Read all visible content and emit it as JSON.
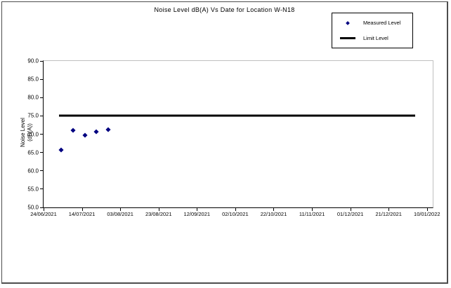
{
  "chart_data": {
    "type": "scatter",
    "title": "Noise Level dB(A) Vs Date for Location W-N18",
    "ylabel_lines": [
      "Noise Level",
      "(dB(A))"
    ],
    "ylim": [
      50,
      90
    ],
    "ytick_step": 5,
    "ytick_labels": [
      "90.0",
      "85.0",
      "80.0",
      "75.0",
      "70.0",
      "65.0",
      "60.0",
      "55.0",
      "50.0"
    ],
    "xtick_labels": [
      "24/06/2021",
      "14/07/2021",
      "03/08/2021",
      "23/08/2021",
      "12/09/2021",
      "02/10/2021",
      "22/10/2021",
      "11/11/2021",
      "01/12/2021",
      "21/12/2021",
      "10/01/2022"
    ],
    "x_axis": {
      "tick_interval_days": 20,
      "domain_days": [
        0,
        203
      ],
      "start_date": "24/06/2021"
    },
    "grid": false,
    "legend_position": "top-right",
    "series": [
      {
        "name": "Measured Level",
        "type": "scatter",
        "marker": "diamond",
        "color": "#000080",
        "points": [
          {
            "date_est": "03/07/2021",
            "day": 9,
            "value": 65.6
          },
          {
            "date_est": "09/07/2021",
            "day": 15.4,
            "value": 71.1
          },
          {
            "date_est": "16/07/2021",
            "day": 21.7,
            "value": 69.7
          },
          {
            "date_est": "22/07/2021",
            "day": 27.5,
            "value": 70.6
          },
          {
            "date_est": "28/07/2021",
            "day": 33.8,
            "value": 71.2
          }
        ]
      },
      {
        "name": "Limit Level",
        "type": "line",
        "color": "#000000",
        "value": 75,
        "day_start": 8,
        "day_end": 194
      }
    ]
  }
}
